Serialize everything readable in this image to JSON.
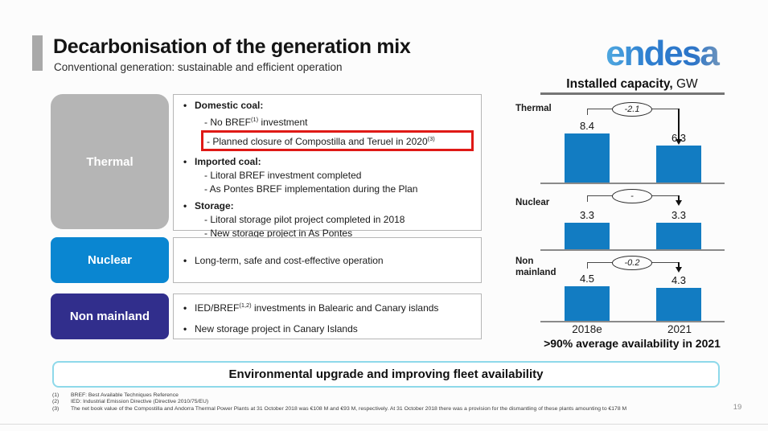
{
  "slide": {
    "title": "Decarbonisation of the generation mix",
    "subtitle": "Conventional generation: sustainable and efficient operation",
    "logo_text": "endesa",
    "page_number": "19"
  },
  "colors": {
    "thermal_box": "#b5b5b5",
    "nuclear_box": "#0a86d1",
    "non_mainland_box": "#312e8c",
    "highlight_red": "#df1916",
    "banner_border": "#8ed9ea"
  },
  "categories": [
    {
      "label": "Thermal"
    },
    {
      "label": "Nuclear"
    },
    {
      "label": "Non mainland"
    }
  ],
  "content_boxes": [
    {
      "lines": [
        {
          "level": 1,
          "bold": true,
          "text": "Domestic coal:"
        },
        {
          "level": 2,
          "text": "- No BREF^(1)^ investment"
        },
        {
          "level": 2,
          "highlight": true,
          "text": "- Planned closure of Compostilla and Teruel in 2020^(3)^"
        },
        {
          "level": 1,
          "bold": true,
          "text": "Imported coal:"
        },
        {
          "level": 2,
          "text": "- Litoral BREF investment completed"
        },
        {
          "level": 2,
          "text": "- As Pontes BREF implementation during the Plan"
        },
        {
          "level": 1,
          "bold": true,
          "text": "Storage:"
        },
        {
          "level": 2,
          "text": "- Litoral storage pilot project completed in 2018"
        },
        {
          "level": 2,
          "text": "- New storage project in As Pontes"
        }
      ]
    },
    {
      "lines": [
        {
          "level": 1,
          "text": "Long-term, safe and cost-effective operation"
        }
      ]
    },
    {
      "lines": [
        {
          "level": 1,
          "text": "IED/BREF^(1,2)^ investments in Balearic and Canary islands"
        },
        {
          "level": 1,
          "text": "New storage project in Canary Islands"
        }
      ]
    }
  ],
  "chart_data": {
    "type": "bar",
    "title_bold": "Installed capacity,",
    "title_regular": " GW",
    "categories": [
      "2018e",
      "2021"
    ],
    "rows": [
      {
        "label": "Thermal",
        "values": [
          8.4,
          6.3
        ],
        "delta": "-2.1"
      },
      {
        "label": "Nuclear",
        "values": [
          3.3,
          3.3
        ],
        "delta": "-"
      },
      {
        "label": "Non mainland",
        "values": [
          4.5,
          4.3
        ],
        "delta": "-0.2"
      }
    ],
    "bar_color": "#127cc2",
    "note": ">90% average availability in 2021",
    "grid": false,
    "legend_position": "none"
  },
  "footer": {
    "banner": "Environmental upgrade and improving fleet availability",
    "footnotes": [
      {
        "num": "(1)",
        "text": "BREF: Best Available Techniques Reference"
      },
      {
        "num": "(2)",
        "text": "IED: Industrial Emission Directive (Directive 2010/75/EU)"
      },
      {
        "num": "(3)",
        "text": "The net book value of the Compostilla and Andorra Thermal Power Plants at 31 October 2018 was €108 M and €93 M, respectively. At 31 October 2018 there was a provision for the dismantling of these plants amounting to €178 M"
      }
    ]
  }
}
